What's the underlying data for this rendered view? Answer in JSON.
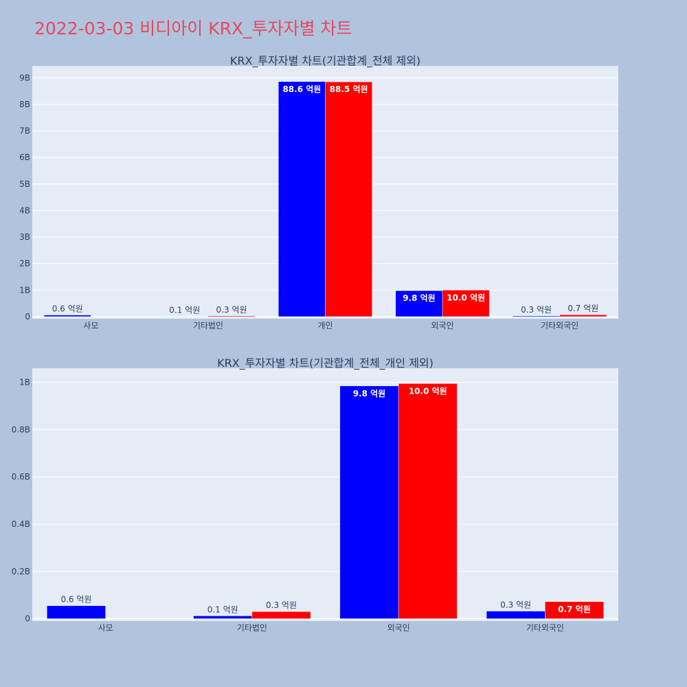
{
  "page_title": "2022-03-03 비디아이 KRX_투자자별 차트",
  "colors": {
    "buy": "#0000ff",
    "sell": "#ff0000",
    "plot_bg": "#e5ecf6",
    "page_bg": "#b0c4de",
    "title": "#e8485e"
  },
  "chart_data": [
    {
      "type": "bar",
      "title": "KRX_투자자별 차트(기관합계_전체 제외)",
      "categories": [
        "사모",
        "기타법인",
        "개인",
        "외국인",
        "기타외국인"
      ],
      "series": [
        {
          "values": [
            60000000,
            10000000,
            8860000000,
            980000000,
            30000000
          ],
          "labels": [
            "0.6 억원",
            "0.1 억원",
            "88.6 억원",
            "9.8 억원",
            "0.3 억원"
          ]
        },
        {
          "values": [
            0,
            30000000,
            8850000000,
            1000000000,
            70000000
          ],
          "labels": [
            "",
            "0.3 억원",
            "88.5 억원",
            "10.0 억원",
            "0.7 억원"
          ]
        }
      ],
      "ylim": [
        -80000000,
        9450000000
      ],
      "yticks": [
        0,
        1000000000,
        2000000000,
        3000000000,
        4000000000,
        5000000000,
        6000000000,
        7000000000,
        8000000000,
        9000000000
      ],
      "ytick_labels": [
        "0",
        "1B",
        "2B",
        "3B",
        "4B",
        "5B",
        "6B",
        "7B",
        "8B",
        "9B"
      ],
      "grid": true,
      "xlabel": "",
      "ylabel": ""
    },
    {
      "type": "bar",
      "title": "KRX_투자자별 차트(기관합계_전체_개인 제외)",
      "categories": [
        "사모",
        "기타법인",
        "외국인",
        "기타외국인"
      ],
      "series": [
        {
          "values": [
            55000000,
            12000000,
            985000000,
            32000000
          ],
          "labels": [
            "0.6 억원",
            "0.1 억원",
            "9.8 억원",
            "0.3 억원"
          ]
        },
        {
          "values": [
            0,
            30000000,
            995000000,
            72000000
          ],
          "labels": [
            "",
            "0.3 억원",
            "10.0 억원",
            "0.7 억원"
          ]
        }
      ],
      "ylim": [
        -10000000,
        1060000000
      ],
      "yticks": [
        0,
        200000000,
        400000000,
        600000000,
        800000000,
        1000000000
      ],
      "ytick_labels": [
        "0",
        "0.2B",
        "0.4B",
        "0.6B",
        "0.8B",
        "1B"
      ],
      "grid": true,
      "xlabel": "",
      "ylabel": ""
    }
  ]
}
